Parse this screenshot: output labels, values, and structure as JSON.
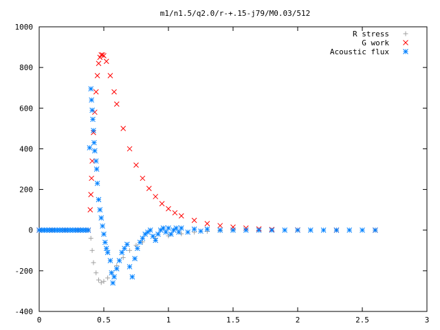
{
  "chart_data": {
    "type": "scatter",
    "title": "m1/n1.5/q2.0/r-+.15-j79/M0.03/512",
    "xlabel": "",
    "ylabel": "",
    "xlim": [
      0,
      3
    ],
    "ylim": [
      -400,
      1000
    ],
    "x_ticks": [
      "0",
      "0.5",
      "1",
      "1.5",
      "2",
      "2.5",
      "3"
    ],
    "y_ticks": [
      "1000",
      "800",
      "600",
      "400",
      "200",
      "0",
      "-200",
      "-400"
    ],
    "grid": false,
    "legend_position": "top-right",
    "series": [
      {
        "name": "R stress",
        "marker": "plus",
        "color": "#a0a0a0",
        "points": [
          [
            0.0,
            0
          ],
          [
            0.1,
            0
          ],
          [
            0.2,
            0
          ],
          [
            0.3,
            0
          ],
          [
            0.38,
            0
          ],
          [
            0.4,
            -40
          ],
          [
            0.41,
            -100
          ],
          [
            0.42,
            -160
          ],
          [
            0.44,
            -210
          ],
          [
            0.46,
            -245
          ],
          [
            0.48,
            -258
          ],
          [
            0.5,
            -252
          ],
          [
            0.53,
            -235
          ],
          [
            0.56,
            -210
          ],
          [
            0.6,
            -175
          ],
          [
            0.65,
            -135
          ],
          [
            0.7,
            -100
          ],
          [
            0.75,
            -75
          ],
          [
            0.8,
            -58
          ],
          [
            0.9,
            -40
          ],
          [
            1.0,
            -28
          ],
          [
            1.1,
            -18
          ],
          [
            1.2,
            -10
          ],
          [
            1.3,
            -6
          ],
          [
            1.4,
            -3
          ],
          [
            1.5,
            -2
          ],
          [
            1.7,
            -1
          ],
          [
            2.0,
            0
          ],
          [
            2.3,
            0
          ],
          [
            2.6,
            0
          ]
        ]
      },
      {
        "name": "G work",
        "marker": "cross",
        "color": "#ff0000",
        "points": [
          [
            0.0,
            0
          ],
          [
            0.1,
            0
          ],
          [
            0.2,
            0
          ],
          [
            0.3,
            0
          ],
          [
            0.38,
            0
          ],
          [
            0.395,
            100
          ],
          [
            0.4,
            175
          ],
          [
            0.405,
            255
          ],
          [
            0.41,
            340
          ],
          [
            0.42,
            480
          ],
          [
            0.43,
            580
          ],
          [
            0.44,
            680
          ],
          [
            0.45,
            760
          ],
          [
            0.46,
            820
          ],
          [
            0.47,
            850
          ],
          [
            0.48,
            862
          ],
          [
            0.49,
            862
          ],
          [
            0.5,
            858
          ],
          [
            0.52,
            830
          ],
          [
            0.55,
            760
          ],
          [
            0.58,
            680
          ],
          [
            0.6,
            620
          ],
          [
            0.65,
            500
          ],
          [
            0.7,
            400
          ],
          [
            0.75,
            320
          ],
          [
            0.8,
            255
          ],
          [
            0.85,
            205
          ],
          [
            0.9,
            165
          ],
          [
            0.95,
            130
          ],
          [
            1.0,
            105
          ],
          [
            1.05,
            85
          ],
          [
            1.1,
            70
          ],
          [
            1.2,
            48
          ],
          [
            1.3,
            32
          ],
          [
            1.4,
            22
          ],
          [
            1.5,
            15
          ],
          [
            1.6,
            10
          ],
          [
            1.7,
            6
          ],
          [
            1.8,
            3
          ],
          [
            2.0,
            1
          ],
          [
            2.3,
            0
          ],
          [
            2.6,
            0
          ]
        ]
      },
      {
        "name": "Acoustic flux",
        "marker": "star",
        "color": "#0080ff",
        "points": [
          [
            0.0,
            0
          ],
          [
            0.02,
            0
          ],
          [
            0.04,
            0
          ],
          [
            0.06,
            0
          ],
          [
            0.08,
            0
          ],
          [
            0.1,
            0
          ],
          [
            0.12,
            0
          ],
          [
            0.14,
            0
          ],
          [
            0.16,
            0
          ],
          [
            0.18,
            0
          ],
          [
            0.2,
            0
          ],
          [
            0.22,
            0
          ],
          [
            0.24,
            0
          ],
          [
            0.26,
            0
          ],
          [
            0.28,
            0
          ],
          [
            0.3,
            0
          ],
          [
            0.32,
            0
          ],
          [
            0.34,
            0
          ],
          [
            0.36,
            0
          ],
          [
            0.38,
            0
          ],
          [
            0.39,
            405
          ],
          [
            0.4,
            695
          ],
          [
            0.405,
            640
          ],
          [
            0.41,
            590
          ],
          [
            0.415,
            545
          ],
          [
            0.42,
            490
          ],
          [
            0.425,
            430
          ],
          [
            0.43,
            390
          ],
          [
            0.44,
            340
          ],
          [
            0.445,
            300
          ],
          [
            0.45,
            230
          ],
          [
            0.46,
            150
          ],
          [
            0.47,
            100
          ],
          [
            0.48,
            60
          ],
          [
            0.49,
            20
          ],
          [
            0.5,
            -20
          ],
          [
            0.51,
            -60
          ],
          [
            0.52,
            -90
          ],
          [
            0.53,
            -110
          ],
          [
            0.55,
            -150
          ],
          [
            0.56,
            -210
          ],
          [
            0.57,
            -260
          ],
          [
            0.58,
            -230
          ],
          [
            0.6,
            -190
          ],
          [
            0.62,
            -150
          ],
          [
            0.64,
            -110
          ],
          [
            0.66,
            -90
          ],
          [
            0.68,
            -70
          ],
          [
            0.7,
            -180
          ],
          [
            0.72,
            -230
          ],
          [
            0.74,
            -140
          ],
          [
            0.76,
            -90
          ],
          [
            0.78,
            -60
          ],
          [
            0.8,
            -40
          ],
          [
            0.82,
            -20
          ],
          [
            0.84,
            -10
          ],
          [
            0.86,
            0
          ],
          [
            0.88,
            -30
          ],
          [
            0.9,
            -50
          ],
          [
            0.92,
            -20
          ],
          [
            0.94,
            0
          ],
          [
            0.96,
            10
          ],
          [
            0.98,
            -10
          ],
          [
            1.0,
            10
          ],
          [
            1.02,
            -20
          ],
          [
            1.04,
            0
          ],
          [
            1.06,
            10
          ],
          [
            1.08,
            -10
          ],
          [
            1.1,
            10
          ],
          [
            1.15,
            -10
          ],
          [
            1.2,
            5
          ],
          [
            1.25,
            -5
          ],
          [
            1.3,
            5
          ],
          [
            1.4,
            0
          ],
          [
            1.5,
            0
          ],
          [
            1.6,
            0
          ],
          [
            1.7,
            0
          ],
          [
            1.8,
            0
          ],
          [
            1.9,
            0
          ],
          [
            2.0,
            0
          ],
          [
            2.1,
            0
          ],
          [
            2.2,
            0
          ],
          [
            2.3,
            0
          ],
          [
            2.4,
            0
          ],
          [
            2.5,
            0
          ],
          [
            2.6,
            0
          ]
        ]
      }
    ]
  }
}
